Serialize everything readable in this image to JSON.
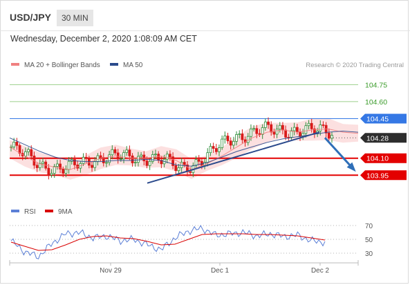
{
  "header": {
    "symbol": "USD/JPY",
    "timeframe": "30 MIN",
    "datetime": "Wednesday, December 2, 2020 1:08:09 AM CET"
  },
  "legend": {
    "ma20_label": "MA 20 + Bollinger Bands",
    "ma50_label": "MA 50",
    "credit": "Research © 2020 Trading Central"
  },
  "colors": {
    "up": "#2f8f3c",
    "down": "#d91b1b",
    "ma20": "#f08080",
    "ma50": "#2b4a8c",
    "band_fill": "#fbd6d6",
    "resistance_green": "#9bcf8a",
    "pivot_blue": "#3578e5",
    "support_red": "#e30000",
    "current_dark": "#2d2d2d",
    "rsi": "#5b7fd6",
    "rsi_ma": "#d90000"
  },
  "chart_data": [
    {
      "type": "line",
      "title": "USD/JPY 30 MIN",
      "y_range": [
        103.75,
        104.85
      ],
      "x_ticks": [
        "Nov 29",
        "Dec 1",
        "Dec 2"
      ],
      "levels": [
        {
          "value": 104.75,
          "label": "104.75",
          "kind": "resistance"
        },
        {
          "value": 104.6,
          "label": "104.60",
          "kind": "resistance"
        },
        {
          "value": 104.45,
          "label": "104.45",
          "kind": "pivot"
        },
        {
          "value": 104.28,
          "label": "104.28",
          "kind": "current"
        },
        {
          "value": 104.1,
          "label": "104.10",
          "kind": "support"
        },
        {
          "value": 103.95,
          "label": "103.95",
          "kind": "support"
        }
      ],
      "series": [
        {
          "name": "MA 20 + Bollinger Bands",
          "values": [
            104.2,
            104.12,
            104.05,
            104.02,
            104.0,
            104.05,
            104.1,
            104.12,
            104.1,
            104.1,
            104.12,
            104.08,
            104.0,
            104.05,
            104.12,
            104.2,
            104.28,
            104.33,
            104.35,
            104.33,
            104.35,
            104.36,
            104.33,
            104.32
          ]
        },
        {
          "name": "MA 50",
          "values": [
            104.28,
            104.22,
            104.16,
            104.11,
            104.08,
            104.07,
            104.07,
            104.08,
            104.08,
            104.09,
            104.08,
            104.04,
            104.03,
            104.06,
            104.11,
            104.16,
            104.2,
            104.24,
            104.27,
            104.29,
            104.31,
            104.33,
            104.34,
            104.33
          ]
        }
      ],
      "trendline": {
        "start": 103.88,
        "end": 104.33
      }
    },
    {
      "type": "line",
      "title": "RSI",
      "y_range": [
        20,
        80
      ],
      "y_ticks": [
        70,
        50,
        30
      ],
      "series": [
        {
          "name": "RSI",
          "values": [
            48,
            32,
            25,
            44,
            58,
            60,
            52,
            55,
            48,
            50,
            42,
            35,
            52,
            62,
            66,
            56,
            58,
            60,
            55,
            58,
            54,
            56,
            48,
            46
          ]
        },
        {
          "name": "9MA",
          "values": [
            46,
            40,
            34,
            35,
            42,
            50,
            54,
            55,
            52,
            51,
            47,
            42,
            43,
            50,
            57,
            58,
            58,
            58,
            57,
            57,
            56,
            55,
            52,
            49
          ]
        }
      ]
    }
  ],
  "rsi_legend": {
    "rsi_label": "RSI",
    "ma_label": "9MA"
  }
}
